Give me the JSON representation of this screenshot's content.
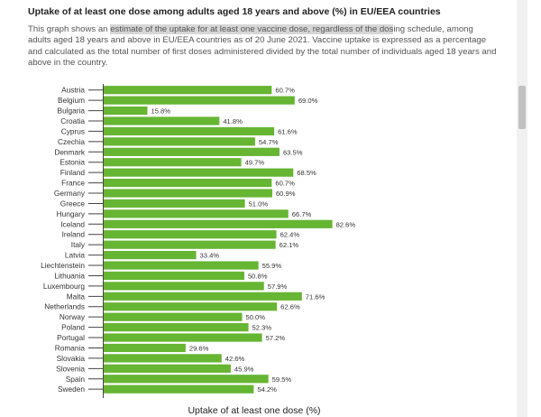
{
  "header": {
    "title": "Uptake of at least one dose among adults aged 18 years and above (%) in EU/EEA countries",
    "desc_pre": "This graph shows an ",
    "desc_highlight": "estimate of the uptake for at least one vaccine dose, regardless of the dos",
    "desc_post": "ing schedule, among adults aged 18 years and above in EU/EEA countries as of 20 June 2021. Vaccine uptake is expressed as a percentage and calculated as the total number of first doses administered divided by the total number of individuals aged 18 years and above in the country."
  },
  "chart_data": {
    "type": "bar",
    "orientation": "horizontal",
    "categories": [
      "Austria",
      "Belgium",
      "Bulgaria",
      "Croatia",
      "Cyprus",
      "Czechia",
      "Denmark",
      "Estonia",
      "Finland",
      "France",
      "Germany",
      "Greece",
      "Hungary",
      "Iceland",
      "Ireland",
      "Italy",
      "Latvia",
      "Liechtenstein",
      "Lithuania",
      "Luxembourg",
      "Malta",
      "Netherlands",
      "Norway",
      "Poland",
      "Portugal",
      "Romania",
      "Slovakia",
      "Slovenia",
      "Spain",
      "Sweden"
    ],
    "values": [
      60.7,
      69.0,
      15.8,
      41.8,
      61.6,
      54.7,
      63.5,
      49.7,
      68.5,
      60.7,
      60.9,
      51.0,
      66.7,
      82.6,
      62.4,
      62.1,
      33.4,
      55.9,
      50.8,
      57.9,
      71.6,
      62.6,
      50.0,
      52.3,
      57.2,
      29.6,
      42.6,
      45.9,
      59.5,
      54.2
    ],
    "value_labels": [
      "60.7%",
      "69.0%",
      "15.8%",
      "41.8%",
      "61.6%",
      "54.7%",
      "63.5%",
      "49.7%",
      "68.5%",
      "60.7%",
      "60.9%",
      "51.0%",
      "66.7%",
      "82.6%",
      "62.4%",
      "62.1%",
      "33.4%",
      "55.9%",
      "50.8%",
      "57.9%",
      "71.6%",
      "62.6%",
      "50.0%",
      "52.3%",
      "57.2%",
      "29.6%",
      "42.6%",
      "45.9%",
      "59.5%",
      "54.2%"
    ],
    "xlabel": "Uptake of at least one dose  (%)",
    "xlim": [
      0,
      100
    ],
    "bar_color": "#66b533",
    "grid": false
  }
}
